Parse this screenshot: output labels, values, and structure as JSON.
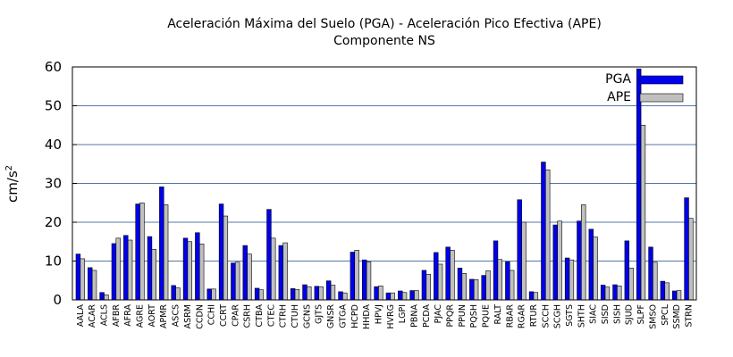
{
  "chart_data": {
    "type": "bar",
    "title": "Aceleración Máxima del Suelo (PGA) -   Aceleración Pico Efectiva (APE)",
    "subtitle": "Componente NS",
    "ylabel": "cm/s",
    "ylabel_sup": "2",
    "xlabel": "",
    "ylim": [
      0,
      60
    ],
    "yticks": [
      0,
      10,
      20,
      30,
      40,
      50,
      60
    ],
    "grid": true,
    "legend_position": "top-right",
    "categories": [
      "AALA",
      "ACAR",
      "ACLS",
      "AFBR",
      "AFRA",
      "AGRE",
      "AORT",
      "APMR",
      "ASCS",
      "ASRM",
      "CCDN",
      "CCHI",
      "CCRT",
      "CPAR",
      "CSRH",
      "CTBA",
      "CTEC",
      "CTRH",
      "CTUH",
      "GCNS",
      "GJTS",
      "GNSR",
      "GTGA",
      "HCPD",
      "HHDA",
      "HPVJ",
      "HVRG",
      "LGPI",
      "PBNA",
      "PCDA",
      "PJAC",
      "PPQR",
      "PPUN",
      "PQSH",
      "PQUE",
      "RALT",
      "RBAR",
      "RGAR",
      "RTUR",
      "SCCH",
      "SCGH",
      "SGTS",
      "SHTH",
      "SIAC",
      "SISD",
      "SISH",
      "SJUD",
      "SLPF",
      "SMSO",
      "SPCL",
      "SSMD",
      "STRN"
    ],
    "series": [
      {
        "name": "PGA",
        "color": "#0000ee",
        "values": [
          11.8,
          8.3,
          1.9,
          14.5,
          16.6,
          24.7,
          16.3,
          29.1,
          3.7,
          15.9,
          17.3,
          2.8,
          24.7,
          9.5,
          14.0,
          3.0,
          23.3,
          14.0,
          2.9,
          3.9,
          3.5,
          4.9,
          2.1,
          12.3,
          10.3,
          3.4,
          1.8,
          2.3,
          2.4,
          7.6,
          12.2,
          13.6,
          8.2,
          5.3,
          6.3,
          15.2,
          9.8,
          25.8,
          2.1,
          35.5,
          19.3,
          10.8,
          20.3,
          18.2,
          3.8,
          3.9,
          15.2,
          59.5,
          13.6,
          4.8,
          2.3,
          26.3
        ]
      },
      {
        "name": "APE",
        "color": "#c0c0c0",
        "values": [
          10.6,
          7.6,
          1.3,
          15.9,
          15.4,
          25.0,
          13.0,
          24.5,
          3.1,
          15.0,
          14.4,
          2.8,
          21.6,
          9.7,
          11.8,
          2.6,
          15.9,
          14.7,
          2.7,
          3.4,
          3.4,
          3.8,
          1.8,
          12.8,
          9.8,
          3.6,
          1.8,
          1.9,
          2.4,
          6.6,
          9.2,
          12.8,
          6.8,
          5.2,
          7.5,
          10.4,
          7.6,
          20.0,
          1.9,
          33.5,
          20.3,
          10.3,
          24.5,
          16.2,
          3.3,
          3.6,
          8.2,
          45.0,
          9.7,
          4.4,
          2.4,
          21.0
        ]
      }
    ]
  }
}
